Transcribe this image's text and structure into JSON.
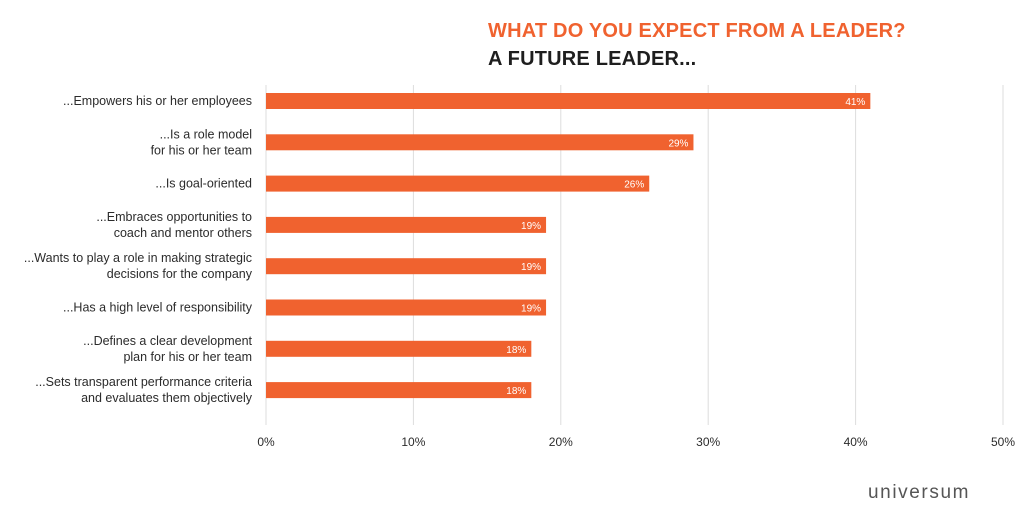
{
  "header": {
    "title": "WHAT DO YOU EXPECT FROM A LEADER?",
    "subtitle": "A FUTURE LEADER..."
  },
  "brand": {
    "name": "universum"
  },
  "colors": {
    "bar": "#f0622f",
    "title_accent": "#f0622f",
    "text": "#2b2b2b",
    "grid": "#dddddd",
    "bar_label": "#ffffff"
  },
  "chart_data": {
    "type": "bar",
    "orientation": "horizontal",
    "title": "WHAT DO YOU EXPECT FROM A LEADER?",
    "subtitle": "A FUTURE LEADER...",
    "categories": [
      [
        "...Empowers his or her employees"
      ],
      [
        "...Is a role model",
        "for his or her team"
      ],
      [
        "...Is goal-oriented"
      ],
      [
        "...Embraces opportunities to",
        "coach and mentor others"
      ],
      [
        "...Wants to play a role in making strategic",
        "decisions for the company"
      ],
      [
        "...Has a high level of responsibility"
      ],
      [
        "...Defines a clear development",
        "plan for his or her team"
      ],
      [
        "...Sets transparent performance criteria",
        "and evaluates them objectively"
      ]
    ],
    "values": [
      41,
      29,
      26,
      19,
      19,
      19,
      18,
      18
    ],
    "value_labels": [
      "41%",
      "29%",
      "26%",
      "19%",
      "19%",
      "19%",
      "18%",
      "18%"
    ],
    "xlim": [
      0,
      50
    ],
    "xticks": [
      0,
      10,
      20,
      30,
      40,
      50
    ],
    "xtick_labels": [
      "0%",
      "10%",
      "20%",
      "30%",
      "40%",
      "50%"
    ],
    "xlabel": "",
    "ylabel": "",
    "grid": "vertical",
    "legend": "none"
  }
}
